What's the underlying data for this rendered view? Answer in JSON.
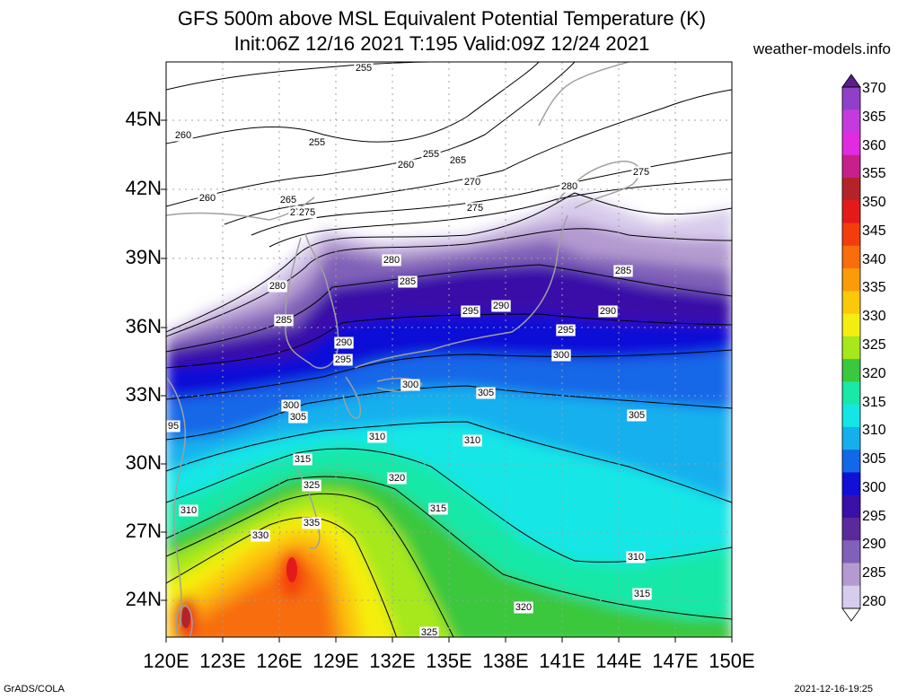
{
  "header": {
    "title_line1": "GFS 500m above MSL Equivalent Potential Temperature (K)",
    "title_line2": "Init:06Z 12/16 2021 T:195 Valid:09Z 12/24 2021",
    "site": "weather-models.info"
  },
  "axes": {
    "lat_labels": [
      "45N",
      "42N",
      "39N",
      "36N",
      "33N",
      "30N",
      "27N",
      "24N"
    ],
    "lon_labels": [
      "120E",
      "123E",
      "126E",
      "129E",
      "132E",
      "135E",
      "138E",
      "141E",
      "144E",
      "147E",
      "150E"
    ]
  },
  "colorbar": {
    "labels": [
      "370",
      "365",
      "360",
      "355",
      "350",
      "345",
      "340",
      "335",
      "330",
      "325",
      "320",
      "315",
      "310",
      "305",
      "300",
      "295",
      "290",
      "285",
      "280"
    ],
    "colors": [
      "#8f3fc8",
      "#c43adc",
      "#e22be0",
      "#c81f8c",
      "#b4232a",
      "#e41a1a",
      "#f43c0c",
      "#f86d0c",
      "#fb9b0a",
      "#fbc80a",
      "#f4ee10",
      "#a6e81c",
      "#3ac83c",
      "#18e8a8",
      "#14e6e6",
      "#14b0ee",
      "#1268e8",
      "#1010d8",
      "#3a10a8",
      "#5a2a9c",
      "#8060b8",
      "#b49ad0",
      "#d8ccec"
    ]
  },
  "contour_labels": [
    "255",
    "255",
    "255",
    "260",
    "260",
    "260",
    "265",
    "265",
    "270",
    "270",
    "275",
    "275",
    "275",
    "280",
    "280",
    "280",
    "285",
    "285",
    "285",
    "290",
    "290",
    "290",
    "295",
    "295",
    "295",
    "95",
    "300",
    "300",
    "300",
    "305",
    "305",
    "305",
    "310",
    "310",
    "310",
    "310",
    "315",
    "315",
    "315",
    "320",
    "320",
    "325",
    "325",
    "330",
    "335"
  ],
  "footer": {
    "left": "GrADS/COLA",
    "right": "2021-12-16-19:25"
  }
}
